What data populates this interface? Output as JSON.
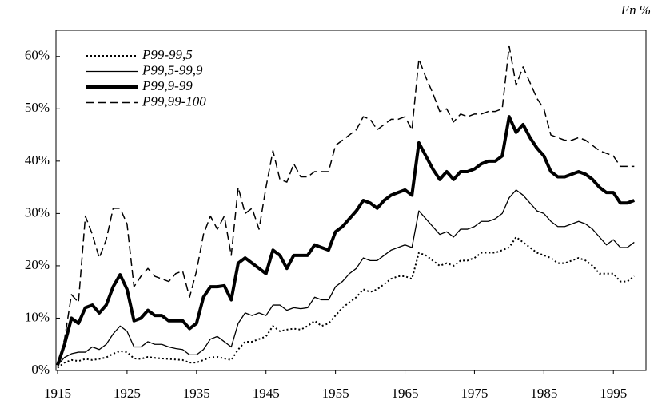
{
  "chart_data": {
    "type": "line",
    "annotation": "En %",
    "x": [
      1915,
      1916,
      1917,
      1918,
      1919,
      1920,
      1921,
      1922,
      1923,
      1924,
      1925,
      1926,
      1927,
      1928,
      1929,
      1930,
      1931,
      1932,
      1933,
      1934,
      1935,
      1936,
      1937,
      1938,
      1939,
      1940,
      1941,
      1942,
      1943,
      1944,
      1945,
      1946,
      1947,
      1948,
      1949,
      1950,
      1951,
      1952,
      1953,
      1954,
      1955,
      1956,
      1957,
      1958,
      1959,
      1960,
      1961,
      1962,
      1963,
      1964,
      1965,
      1966,
      1967,
      1968,
      1969,
      1970,
      1971,
      1972,
      1973,
      1974,
      1975,
      1976,
      1977,
      1978,
      1979,
      1980,
      1981,
      1982,
      1983,
      1984,
      1985,
      1986,
      1987,
      1988,
      1989,
      1990,
      1991,
      1992,
      1993,
      1994,
      1995,
      1996,
      1997,
      1998
    ],
    "series": [
      {
        "name": "P99-99,5",
        "color": "#000000",
        "style": "dotted",
        "values": [
          0.5,
          1.5,
          2,
          1.8,
          2.2,
          2,
          2.2,
          2.5,
          3.2,
          3.7,
          3.5,
          2.3,
          2.2,
          2.6,
          2.4,
          2.3,
          2.2,
          2.1,
          2,
          1.5,
          1.5,
          2,
          2.5,
          2.6,
          2.3,
          2,
          4,
          5.5,
          5.5,
          6,
          6.5,
          8.5,
          7.5,
          7.8,
          8,
          7.8,
          8.5,
          9.5,
          8.5,
          9,
          10.5,
          12,
          13,
          14,
          15.5,
          15,
          15.5,
          16.5,
          17.5,
          18,
          18,
          17.5,
          22.5,
          22,
          21,
          20,
          20.5,
          20,
          21,
          21,
          21.5,
          22.5,
          22.5,
          22.5,
          23,
          23.5,
          25.5,
          24.5,
          23.5,
          22.5,
          22,
          21.5,
          20.5,
          20.5,
          21,
          21.5,
          21,
          20,
          18.5,
          18.5,
          18.5,
          17,
          17,
          18
        ]
      },
      {
        "name": "P99,5-99,9",
        "color": "#000000",
        "style": "solid",
        "values": [
          1,
          2.5,
          3.2,
          3.5,
          3.5,
          4.5,
          4,
          5,
          7,
          8.5,
          7.5,
          4.5,
          4.5,
          5.5,
          5,
          5,
          4.5,
          4.2,
          4,
          3,
          3,
          4,
          6,
          6.5,
          5.5,
          4.5,
          9,
          11,
          10.5,
          11,
          10.5,
          12.5,
          12.5,
          11.5,
          12,
          11.8,
          12,
          14,
          13.5,
          13.5,
          16,
          17,
          18.5,
          19.5,
          21.5,
          21,
          21,
          22,
          23,
          23.5,
          24,
          23.5,
          30.5,
          29,
          27.5,
          26,
          26.5,
          25.5,
          27,
          27,
          27.5,
          28.5,
          28.5,
          29,
          30,
          33,
          34.5,
          33.5,
          32,
          30.5,
          30,
          28.5,
          27.5,
          27.5,
          28,
          28.5,
          28,
          27,
          25.5,
          24,
          25,
          23.5,
          23.5,
          24.5
        ]
      },
      {
        "name": "P99,9-99",
        "color": "#000000",
        "style": "bold",
        "values": [
          1,
          5,
          10,
          9,
          12,
          12.5,
          11,
          12.5,
          16,
          18.3,
          15.5,
          9.5,
          10,
          11.5,
          10.5,
          10.5,
          9.5,
          9.5,
          9.5,
          8,
          9,
          14,
          16,
          16,
          16.2,
          13.5,
          20.5,
          21.5,
          20.5,
          19.5,
          18.5,
          23,
          22,
          19.5,
          22,
          22,
          22,
          24,
          23.5,
          23,
          26.5,
          27.5,
          29,
          30.5,
          32.5,
          32,
          31,
          32.5,
          33.5,
          34,
          34.5,
          33.5,
          43.5,
          41,
          38.5,
          36.5,
          38,
          36.5,
          38,
          38,
          38.5,
          39.5,
          40,
          40,
          41,
          48.5,
          45.5,
          47,
          44.5,
          42.5,
          41,
          38,
          37,
          37,
          37.5,
          38,
          37.5,
          36.5,
          35,
          34,
          34,
          32,
          32,
          32.5
        ]
      },
      {
        "name": "P99,99-100",
        "color": "#000000",
        "style": "dashed",
        "values": [
          1,
          6,
          14.5,
          13,
          29.5,
          26,
          21.5,
          25,
          31,
          31,
          28,
          16,
          18,
          19.5,
          18,
          17.5,
          17,
          18.5,
          19,
          14,
          19,
          26,
          29.5,
          27,
          29.5,
          22,
          35,
          30,
          31,
          27,
          35,
          42,
          36.5,
          36,
          39.5,
          37,
          37,
          38,
          38,
          38,
          43,
          44,
          45,
          46,
          48.5,
          48,
          46,
          47,
          48,
          48,
          48.5,
          46,
          59.5,
          56,
          53,
          49.5,
          50,
          47.5,
          49,
          48.5,
          49,
          49,
          49.5,
          49.5,
          50,
          62,
          54.5,
          58,
          55,
          52,
          50,
          45,
          44.5,
          44,
          44,
          44.5,
          44,
          43,
          42,
          41.5,
          41,
          39,
          39,
          39
        ]
      }
    ],
    "xlim": [
      1915,
      1999
    ],
    "xticks": [
      1915,
      1925,
      1935,
      1945,
      1955,
      1965,
      1975,
      1985,
      1995
    ],
    "ylim": [
      0,
      65
    ],
    "yticks": [
      {
        "value": 0,
        "label": "0%"
      },
      {
        "value": 10,
        "label": "10%"
      },
      {
        "value": 20,
        "label": "20%"
      },
      {
        "value": 30,
        "label": "30%"
      },
      {
        "value": 40,
        "label": "40%"
      },
      {
        "value": 50,
        "label": "50%"
      },
      {
        "value": 60,
        "label": "60%"
      }
    ],
    "legend": "upper left",
    "grid": false
  }
}
